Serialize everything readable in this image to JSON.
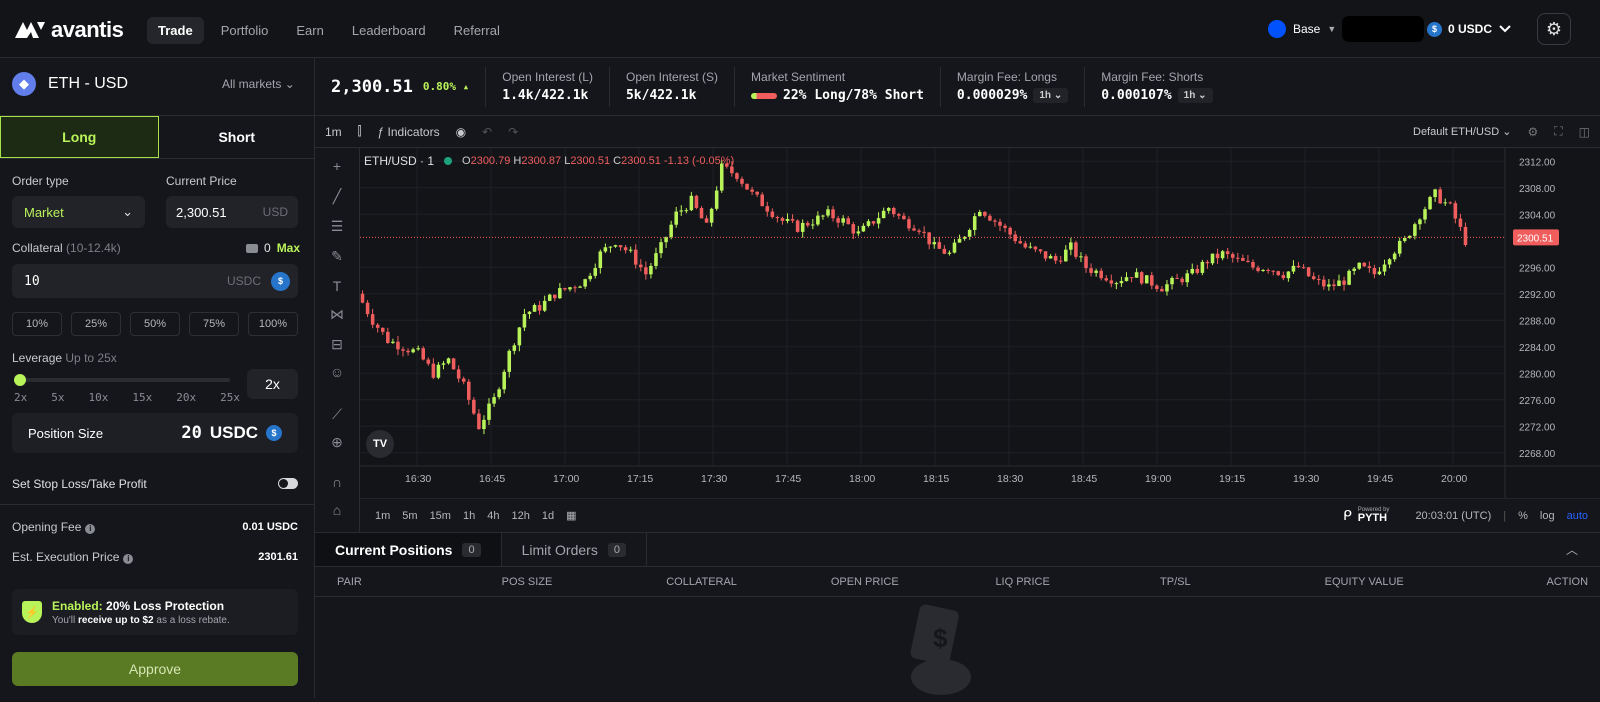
{
  "brand": {
    "name": "avantis"
  },
  "nav": {
    "items": [
      "Trade",
      "Portfolio",
      "Earn",
      "Leaderboard",
      "Referral"
    ],
    "active": "Trade"
  },
  "header": {
    "chain": "Base",
    "balance": "0 USDC"
  },
  "market": {
    "pair": "ETH - USD",
    "all_markets": "All markets"
  },
  "side_tabs": {
    "long": "Long",
    "short": "Short",
    "active": "Long"
  },
  "order": {
    "order_type_label": "Order type",
    "order_type_value": "Market",
    "current_price_label": "Current Price",
    "current_price_value": "2,300.51",
    "current_price_unit": "USD",
    "collateral_label": "Collateral",
    "collateral_range": "(10-12.4k)",
    "wallet_amount": "0",
    "max_label": "Max",
    "collateral_value": "10",
    "collateral_unit": "USDC",
    "percentages": [
      "10%",
      "25%",
      "50%",
      "75%",
      "100%"
    ],
    "leverage_label": "Leverage",
    "leverage_hint": "Up to 25x",
    "leverage_ticks": [
      "2x",
      "5x",
      "10x",
      "15x",
      "20x",
      "25x"
    ],
    "leverage_value": "2x",
    "leverage_level": 2,
    "position_size_label": "Position Size",
    "position_size_value": "20",
    "position_size_unit": "USDC",
    "sltp_label": "Set Stop Loss/Take Profit",
    "opening_fee_label": "Opening Fee",
    "opening_fee_value": "0.01 USDC",
    "exec_price_label": "Est. Execution Price",
    "exec_price_value": "2301.61",
    "protection_enabled": "Enabled:",
    "protection_title": "20% Loss Protection",
    "protection_line_a": "You'll",
    "protection_line_b": "receive up to $2",
    "protection_line_c": "as a loss rebate.",
    "approve_label": "Approve"
  },
  "stats": {
    "price": "2,300.51",
    "change": "0.80%",
    "oi_long_label": "Open Interest (L)",
    "oi_long_value": "1.4k/422.1k",
    "oi_short_label": "Open Interest (S)",
    "oi_short_value": "5k/422.1k",
    "sentiment_label": "Market Sentiment",
    "sentiment_value": "22% Long/78% Short",
    "fee_long_label": "Margin Fee: Longs",
    "fee_long_value": "0.000029%",
    "fee_long_period": "1h",
    "fee_short_label": "Margin Fee: Shorts",
    "fee_short_value": "0.000107%",
    "fee_short_period": "1h"
  },
  "chart_toolbar": {
    "interval": "1m",
    "indicators": "Indicators",
    "layout": "Default ETH/USD"
  },
  "colors": {
    "accent": "#b9f35a",
    "up": "#b9f35a",
    "down": "#ef5d5d",
    "bg": "#15161b"
  },
  "chart_data": {
    "type": "candlestick",
    "symbol": "ETH/USD · 1",
    "ohlc_o": "2300.79",
    "ohlc_h": "2300.87",
    "ohlc_l": "2300.51",
    "ohlc_c": "2300.51",
    "ohlc_chg": "-1.13 (-0.05%)",
    "last_price": "2300.51",
    "y_ticks": [
      "2312.00",
      "2308.00",
      "2304.00",
      "2296.00",
      "2292.00",
      "2288.00",
      "2284.00",
      "2280.00",
      "2276.00",
      "2272.00",
      "2268.00"
    ],
    "ylim": [
      2266,
      2314
    ],
    "x_ticks": [
      "16:30",
      "16:45",
      "17:00",
      "17:15",
      "17:30",
      "17:45",
      "18:00",
      "18:15",
      "18:30",
      "18:45",
      "19:00",
      "19:15",
      "19:30",
      "19:45",
      "20:00"
    ],
    "close_path": [
      2292,
      2288,
      2285,
      2284,
      2283,
      2280,
      2282,
      2278,
      2272,
      2276,
      2283,
      2289,
      2290,
      2292,
      2293,
      2294,
      2298,
      2300,
      2298,
      2295,
      2299,
      2304,
      2306,
      2302,
      2311,
      2310,
      2307,
      2305,
      2303,
      2302,
      2303,
      2304,
      2303,
      2301,
      2303,
      2305,
      2303,
      2302,
      2299,
      2298,
      2301,
      2305,
      2303,
      2301,
      2299,
      2298,
      2297,
      2299,
      2296,
      2295,
      2294,
      2295,
      2294,
      2293,
      2294,
      2295,
      2297,
      2298,
      2297,
      2296,
      2296,
      2295,
      2296,
      2294,
      2293,
      2294,
      2296,
      2295,
      2298,
      2300,
      2304,
      2307,
      2305,
      2300
    ]
  },
  "timeframes": [
    "1m",
    "5m",
    "15m",
    "1h",
    "4h",
    "12h",
    "1d"
  ],
  "bottom_bar": {
    "clock": "20:03:01 (UTC)",
    "pct": "%",
    "log": "log",
    "auto": "auto",
    "powered": "Powered by",
    "pyth": "PYTH"
  },
  "positions": {
    "tab_current": "Current Positions",
    "tab_current_count": "0",
    "tab_limit": "Limit Orders",
    "tab_limit_count": "0",
    "columns": [
      "PAIR",
      "POS SIZE",
      "COLLATERAL",
      "OPEN PRICE",
      "LIQ PRICE",
      "TP/SL",
      "EQUITY VALUE",
      "ACTION"
    ]
  }
}
